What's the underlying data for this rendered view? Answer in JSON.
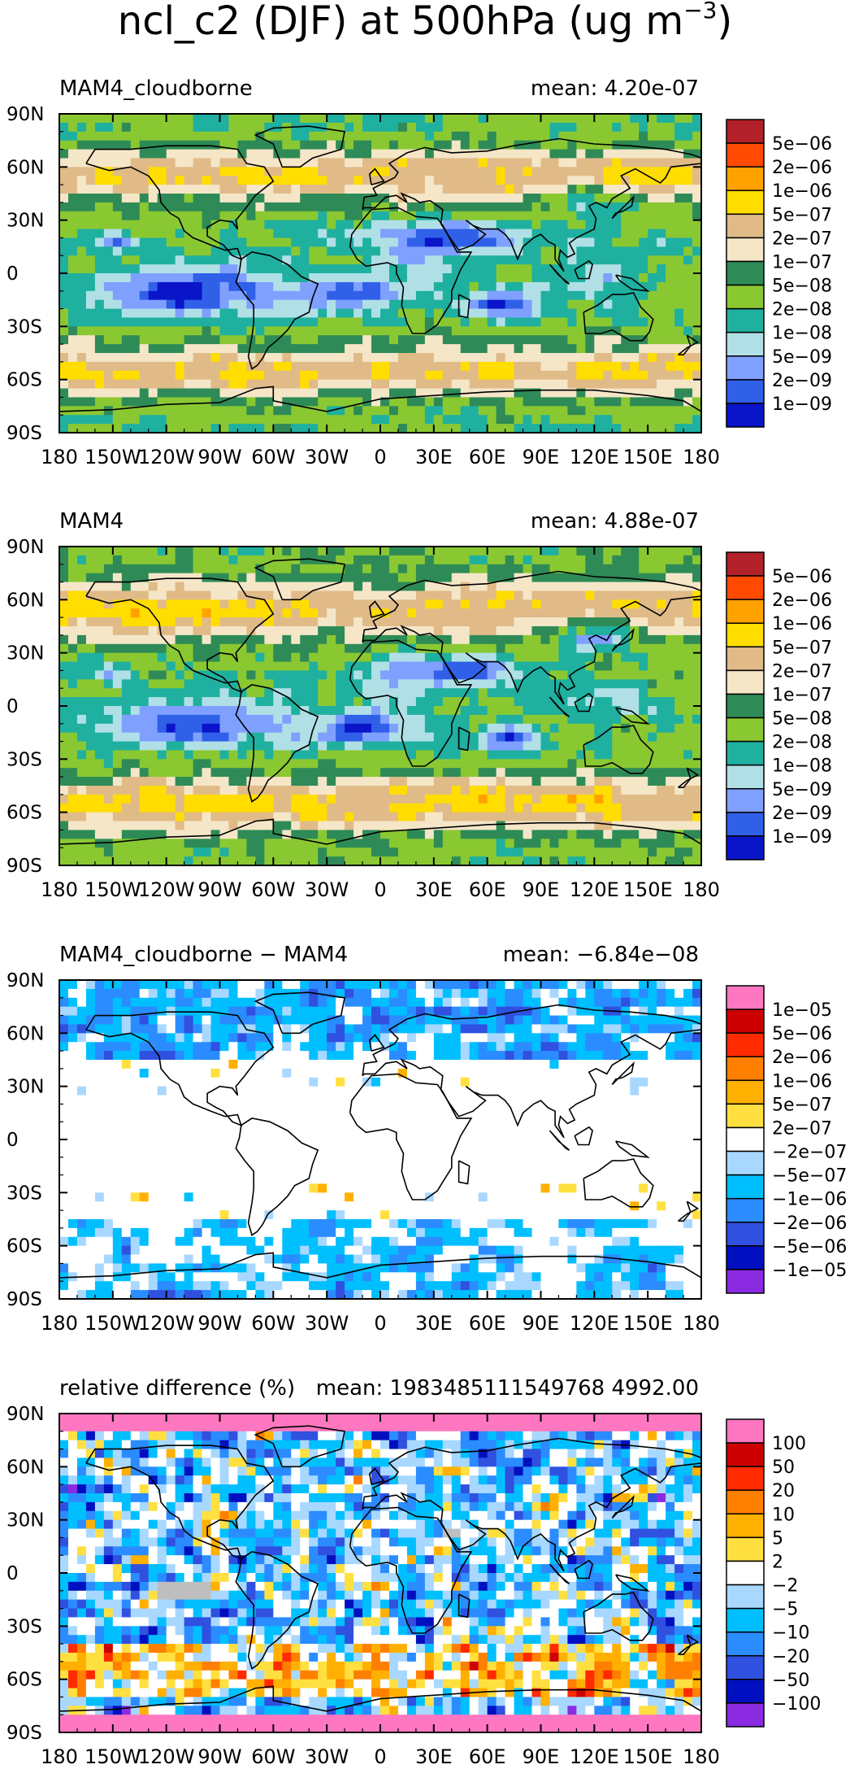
{
  "title": "ncl_c2 (DJF) at 500hPa (ug m",
  "title_exponent": "−3",
  "title_close": ")",
  "chart_data": [
    {
      "type": "heatmap",
      "title": "MAM4_cloudborne",
      "mean_text": "mean: 4.20e-07",
      "xticks": [
        "180",
        "150W",
        "120W",
        "90W",
        "60W",
        "30W",
        "0",
        "30E",
        "60E",
        "90E",
        "120E",
        "150E",
        "180"
      ],
      "yticks": [
        "90N",
        "60N",
        "30N",
        "0",
        "30S",
        "60S",
        "90S"
      ],
      "xlim": [
        -180,
        180
      ],
      "ylim": [
        -90,
        90
      ],
      "levels": [
        "5e−06",
        "2e−06",
        "1e−06",
        "5e−07",
        "2e−07",
        "1e−07",
        "5e−08",
        "2e−08",
        "1e−08",
        "5e−09",
        "2e−09",
        "1e−09"
      ],
      "colors": [
        "#b2202a",
        "#ff4a00",
        "#ffa200",
        "#ffdd00",
        "#e0bb88",
        "#f5e6c8",
        "#2e8b57",
        "#8ac832",
        "#1fb0a0",
        "#b0e0e6",
        "#7fa0ff",
        "#3060e8",
        "#0a14c8"
      ]
    },
    {
      "type": "heatmap",
      "title": "MAM4",
      "mean_text": "mean: 4.88e-07",
      "xticks": [
        "180",
        "150W",
        "120W",
        "90W",
        "60W",
        "30W",
        "0",
        "30E",
        "60E",
        "90E",
        "120E",
        "150E",
        "180"
      ],
      "yticks": [
        "90N",
        "60N",
        "30N",
        "0",
        "30S",
        "60S",
        "90S"
      ],
      "xlim": [
        -180,
        180
      ],
      "ylim": [
        -90,
        90
      ],
      "levels": [
        "5e−06",
        "2e−06",
        "1e−06",
        "5e−07",
        "2e−07",
        "1e−07",
        "5e−08",
        "2e−08",
        "1e−08",
        "5e−09",
        "2e−09",
        "1e−09"
      ],
      "colors": [
        "#b2202a",
        "#ff4a00",
        "#ffa200",
        "#ffdd00",
        "#e0bb88",
        "#f5e6c8",
        "#2e8b57",
        "#8ac832",
        "#1fb0a0",
        "#b0e0e6",
        "#7fa0ff",
        "#3060e8",
        "#0a14c8"
      ]
    },
    {
      "type": "heatmap",
      "title": "MAM4_cloudborne − MAM4",
      "mean_text": "mean: −6.84e−08",
      "xticks": [
        "180",
        "150W",
        "120W",
        "90W",
        "60W",
        "30W",
        "0",
        "30E",
        "60E",
        "90E",
        "120E",
        "150E",
        "180"
      ],
      "yticks": [
        "90N",
        "60N",
        "30N",
        "0",
        "30S",
        "60S",
        "90S"
      ],
      "xlim": [
        -180,
        180
      ],
      "ylim": [
        -90,
        90
      ],
      "levels": [
        "1e−05",
        "5e−06",
        "2e−06",
        "1e−06",
        "5e−07",
        "2e−07",
        "−2e−07",
        "−5e−07",
        "−1e−06",
        "−2e−06",
        "−5e−06",
        "−1e−05"
      ],
      "colors": [
        "#ff77c0",
        "#cc0000",
        "#ff2a00",
        "#ff8000",
        "#ffb000",
        "#ffe040",
        "#ffffff",
        "#a8d8ff",
        "#00bfff",
        "#2a8cff",
        "#3050e0",
        "#0010c0",
        "#8a2be2"
      ]
    },
    {
      "type": "heatmap",
      "title": "relative difference (%)",
      "mean_text": "mean: 1983485111549768 4992.00",
      "xticks": [
        "180",
        "150W",
        "120W",
        "90W",
        "60W",
        "30W",
        "0",
        "30E",
        "60E",
        "90E",
        "120E",
        "150E",
        "180"
      ],
      "yticks": [
        "90N",
        "60N",
        "30N",
        "0",
        "30S",
        "60S",
        "90S"
      ],
      "xlim": [
        -180,
        180
      ],
      "ylim": [
        -90,
        90
      ],
      "levels": [
        "100",
        "50",
        "20",
        "10",
        "5",
        "2",
        "−2",
        "−5",
        "−10",
        "−20",
        "−50",
        "−100"
      ],
      "colors": [
        "#ff77c0",
        "#cc0000",
        "#ff2a00",
        "#ff8000",
        "#ffb000",
        "#ffe040",
        "#ffffff",
        "#a8d8ff",
        "#00bfff",
        "#2a8cff",
        "#3050e0",
        "#0010c0",
        "#8a2be2"
      ]
    }
  ]
}
